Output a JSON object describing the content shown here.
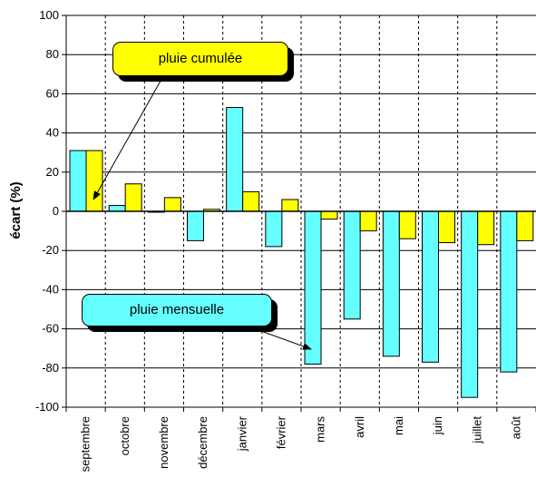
{
  "chart_data": {
    "type": "bar",
    "categories": [
      "septembre",
      "octobre",
      "novembre",
      "décembre",
      "janvier",
      "février",
      "mars",
      "avril",
      "mai",
      "juin",
      "juillet",
      "août"
    ],
    "series": [
      {
        "name": "pluie mensuelle",
        "color": "#66FFFF",
        "values": [
          31,
          3,
          0,
          -15,
          53,
          -18,
          -78,
          -55,
          -74,
          -77,
          -95,
          -82
        ]
      },
      {
        "name": "pluie cumulée",
        "color": "#FFFF00",
        "values": [
          31,
          14,
          7,
          1,
          10,
          6,
          -4,
          -10,
          -14,
          -16,
          -17,
          -15
        ]
      }
    ],
    "ylabel": "écart (%)",
    "ylim": [
      -100,
      100
    ],
    "yticks": [
      -100,
      -80,
      -60,
      -40,
      -20,
      0,
      20,
      40,
      60,
      80,
      100
    ],
    "grid": {
      "horizontal": true,
      "vertical": "dashed"
    },
    "legend": "callouts"
  }
}
